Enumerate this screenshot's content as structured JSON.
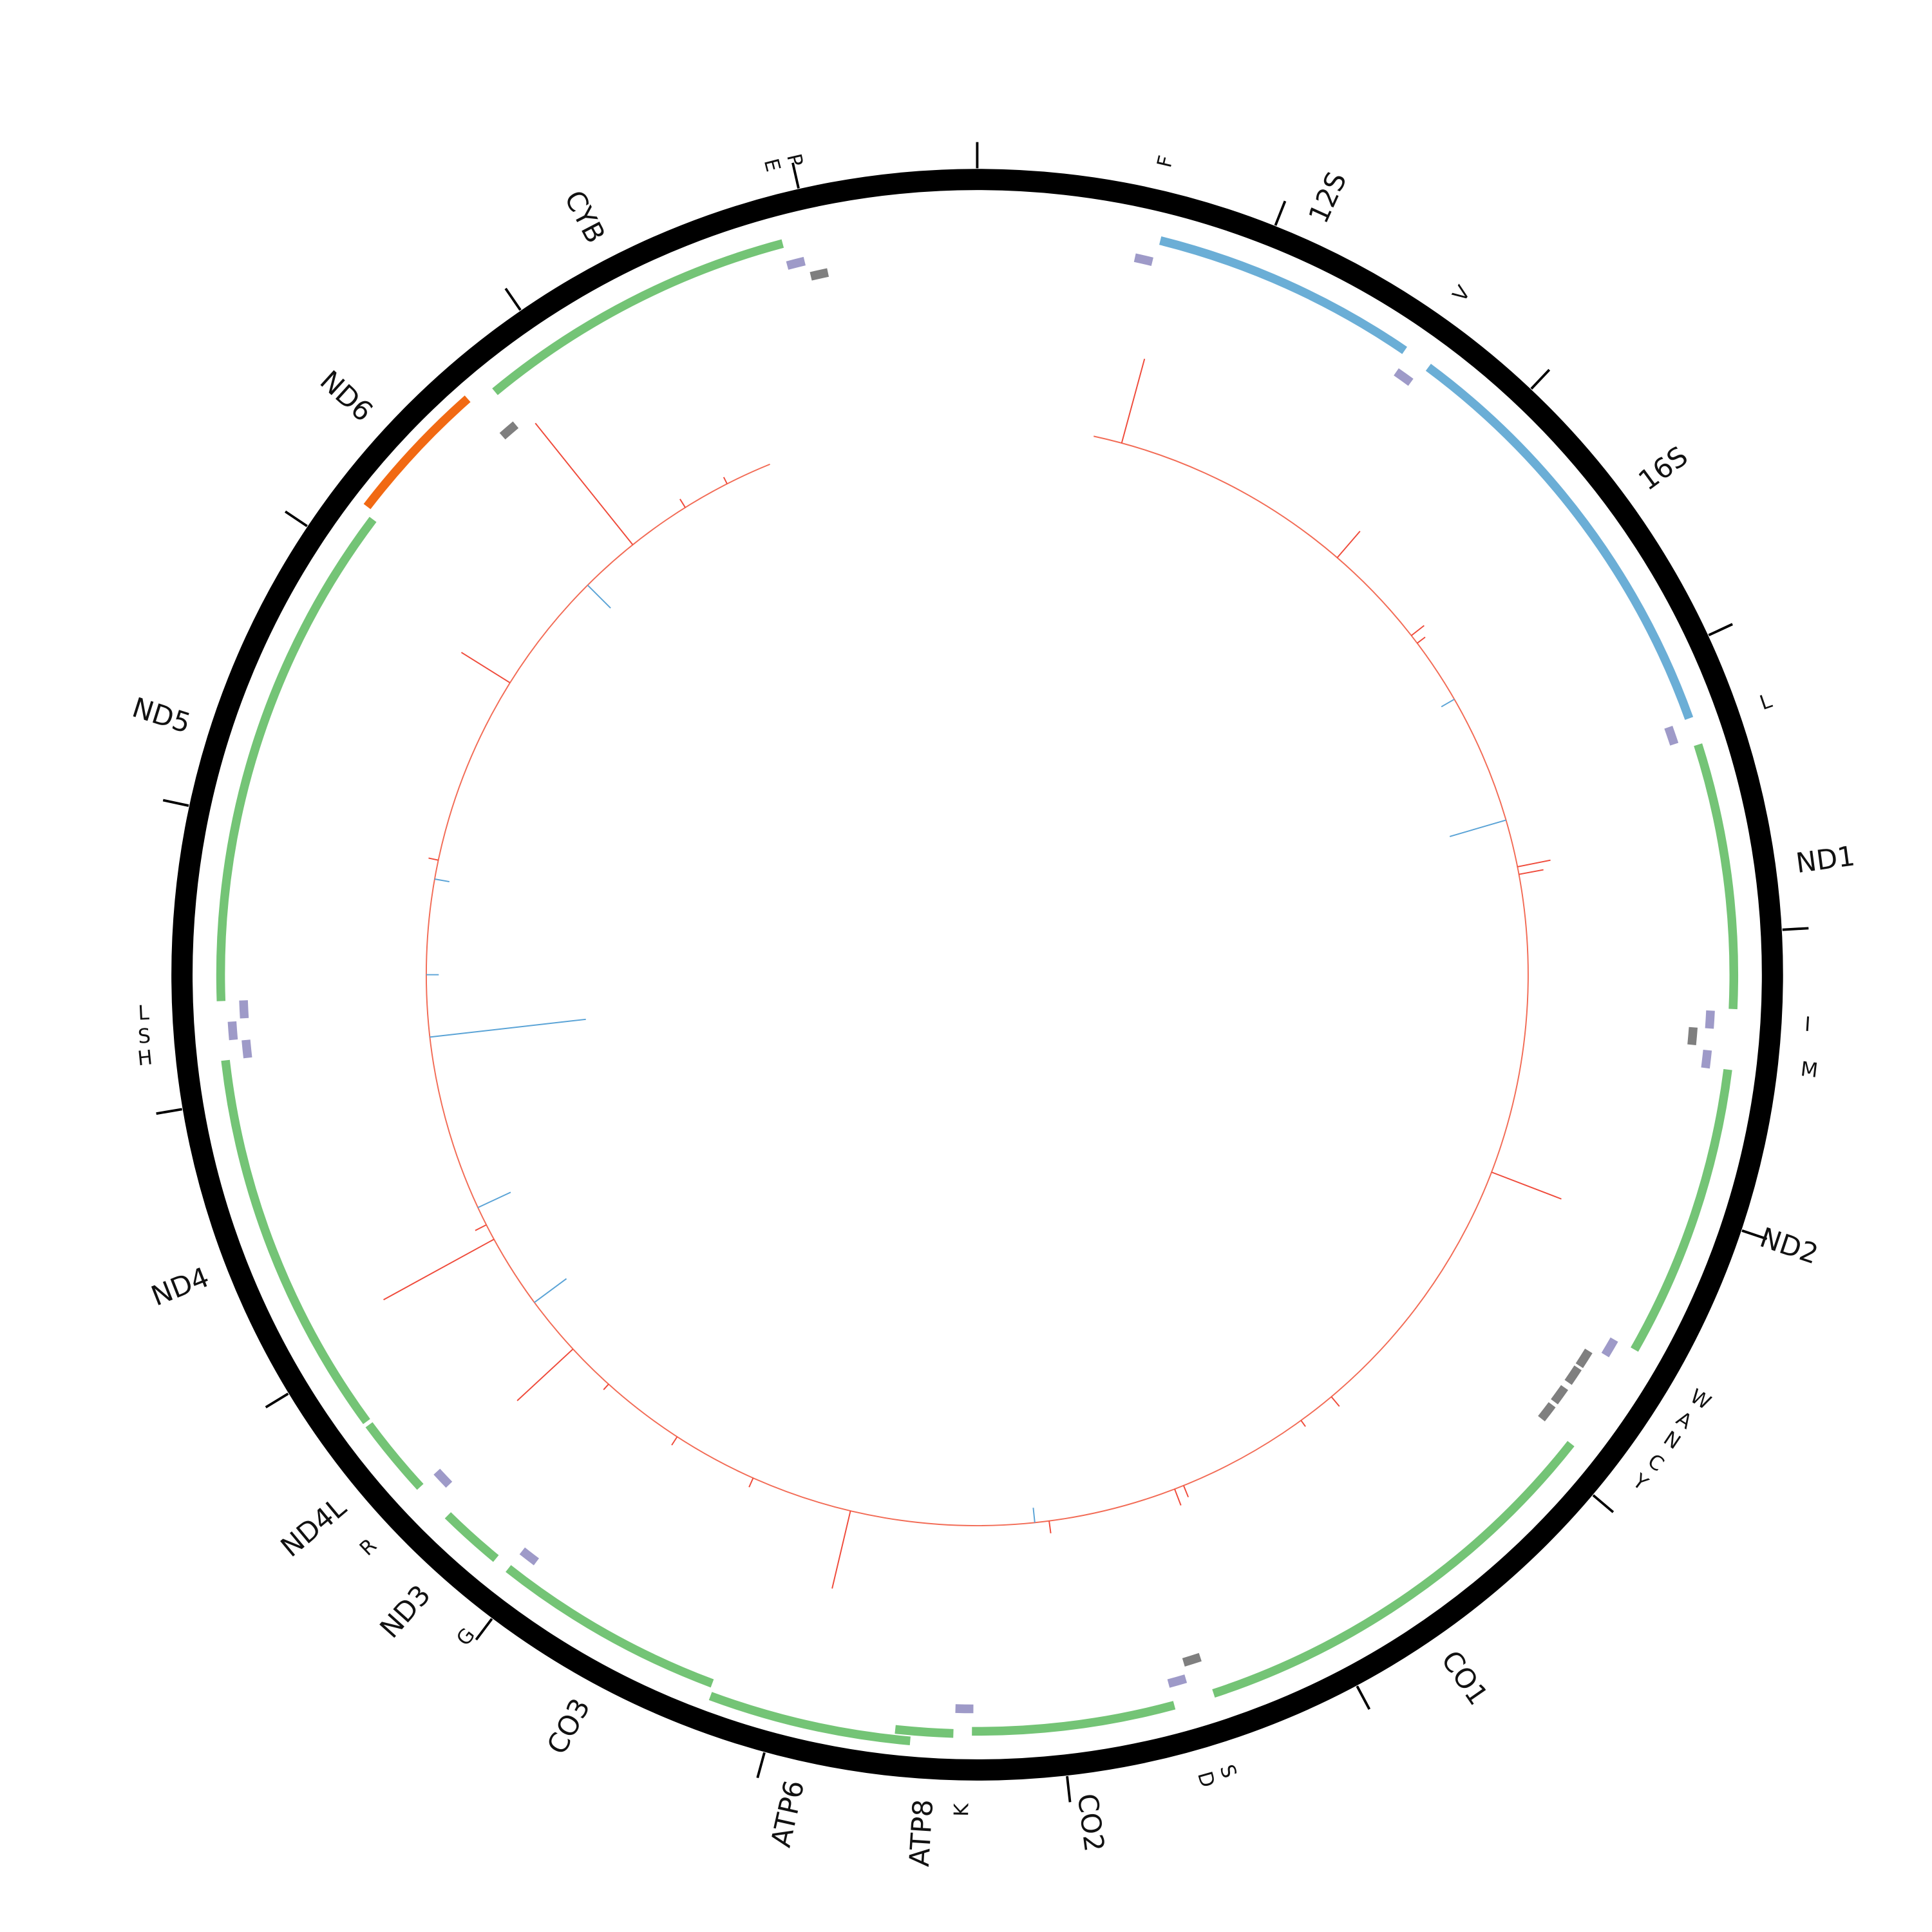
{
  "genes": [
    {
      "label": "12S"
    },
    {
      "label": "16S"
    },
    {
      "label": "ND1"
    },
    {
      "label": "ND2"
    },
    {
      "label": "CO1"
    },
    {
      "label": "CO2"
    },
    {
      "label": "ATP8"
    },
    {
      "label": "ATP6"
    },
    {
      "label": "CO3"
    },
    {
      "label": "ND3"
    },
    {
      "label": "ND4L"
    },
    {
      "label": "ND4"
    },
    {
      "label": "ND5"
    },
    {
      "label": "ND6"
    },
    {
      "label": "CYB"
    }
  ],
  "trnas": [
    {
      "label": "F"
    },
    {
      "label": "V"
    },
    {
      "label": "L"
    },
    {
      "label": "I"
    },
    {
      "label": "M"
    },
    {
      "label": "W"
    },
    {
      "label": "A"
    },
    {
      "label": "N"
    },
    {
      "label": "C"
    },
    {
      "label": "Y"
    },
    {
      "label": "S"
    },
    {
      "label": "D"
    },
    {
      "label": "K"
    },
    {
      "label": "G"
    },
    {
      "label": "R"
    },
    {
      "label": "H"
    },
    {
      "label": "S"
    },
    {
      "label": "L"
    },
    {
      "label": "E"
    },
    {
      "label": "P"
    }
  ]
}
